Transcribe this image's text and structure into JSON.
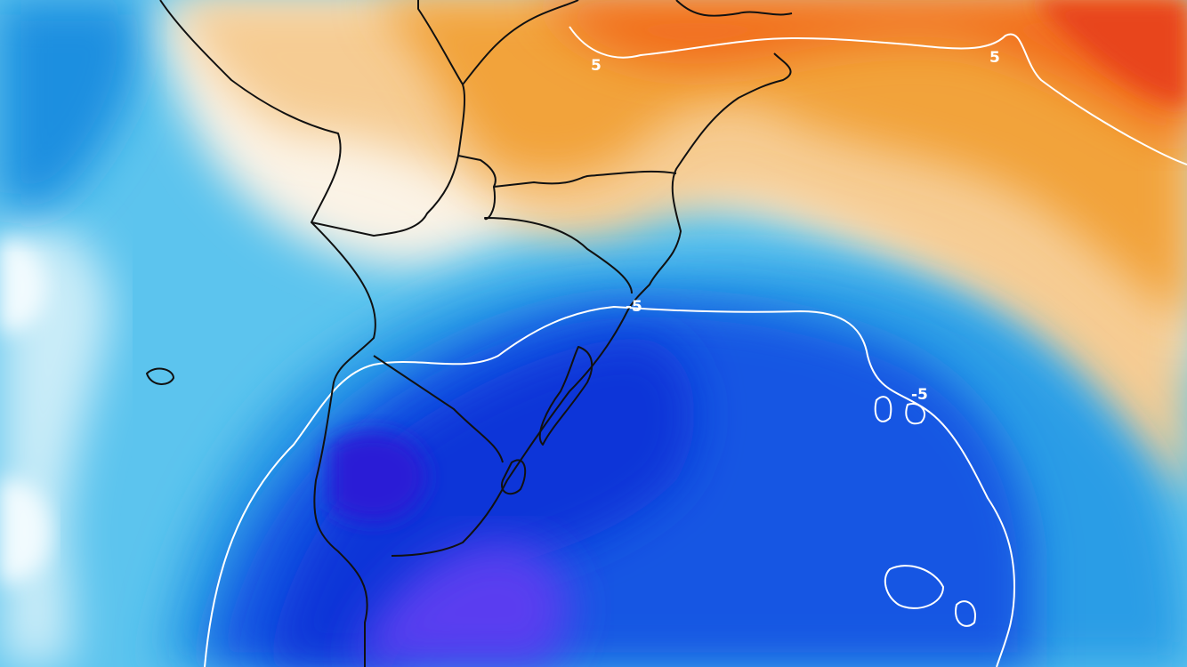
{
  "map": {
    "type": "temperature-anomaly-map",
    "color_scale": {
      "warm_strong": "#f4511e",
      "warm_medium": "#f39c12",
      "warm_light": "#f8d7a8",
      "neutral": "#ffffff",
      "cold_light": "#b6e6f7",
      "cold_medium": "#1e9be0",
      "cold_deep": "#0b3bdc",
      "cold_extreme": "#5a3cf0"
    },
    "contour_color": "#ffffff",
    "border_color": "#111111",
    "contours": [
      {
        "label": "5"
      },
      {
        "label": "5"
      },
      {
        "label": "-5"
      },
      {
        "label": "-5"
      }
    ]
  }
}
